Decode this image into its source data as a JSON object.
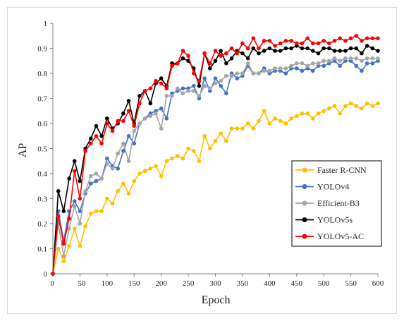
{
  "chart_data": {
    "type": "line",
    "title": "",
    "xlabel": "Epoch",
    "ylabel": "AP",
    "xlim": [
      0,
      600
    ],
    "ylim": [
      0,
      1
    ],
    "xticks": [
      0,
      50,
      100,
      150,
      200,
      250,
      300,
      350,
      400,
      450,
      500,
      550,
      600
    ],
    "xtick_labels": [
      "0",
      "50",
      "100",
      "150",
      "200",
      "250",
      "300",
      "350",
      "400",
      "450",
      "500",
      "550",
      "600"
    ],
    "yticks": [
      0,
      0.1,
      0.2,
      0.3,
      0.4,
      0.5,
      0.6,
      0.7,
      0.8,
      0.9,
      1
    ],
    "ytick_labels": [
      "0",
      "0.1",
      "0.2",
      "0.3",
      "0.4",
      "0.5",
      "0.6",
      "0.7",
      "0.8",
      "0.9",
      "1"
    ],
    "grid": false,
    "legend_position": "bottom-right",
    "x": [
      0,
      10,
      20,
      30,
      40,
      50,
      60,
      70,
      80,
      90,
      100,
      110,
      120,
      130,
      140,
      150,
      160,
      170,
      180,
      190,
      200,
      210,
      220,
      230,
      240,
      250,
      260,
      270,
      280,
      290,
      300,
      310,
      320,
      330,
      340,
      350,
      360,
      370,
      380,
      390,
      400,
      410,
      420,
      430,
      440,
      450,
      460,
      470,
      480,
      490,
      500,
      510,
      520,
      530,
      540,
      550,
      560,
      570,
      580,
      590,
      600
    ],
    "series": [
      {
        "name": "Faster R-CNN",
        "color": "#ffc000",
        "values": [
          0,
          0.1,
          0.05,
          0.11,
          0.18,
          0.11,
          0.19,
          0.24,
          0.25,
          0.25,
          0.3,
          0.28,
          0.33,
          0.36,
          0.32,
          0.37,
          0.4,
          0.41,
          0.42,
          0.43,
          0.39,
          0.45,
          0.46,
          0.47,
          0.46,
          0.5,
          0.49,
          0.45,
          0.55,
          0.5,
          0.53,
          0.56,
          0.53,
          0.58,
          0.58,
          0.58,
          0.6,
          0.58,
          0.61,
          0.65,
          0.6,
          0.62,
          0.61,
          0.6,
          0.62,
          0.63,
          0.64,
          0.64,
          0.62,
          0.64,
          0.65,
          0.66,
          0.67,
          0.64,
          0.67,
          0.68,
          0.67,
          0.66,
          0.68,
          0.67,
          0.68
        ]
      },
      {
        "name": "YOLOv4",
        "color": "#4472c4",
        "values": [
          0,
          0.25,
          0.13,
          0.25,
          0.29,
          0.25,
          0.32,
          0.36,
          0.37,
          0.38,
          0.46,
          0.43,
          0.42,
          0.49,
          0.55,
          0.52,
          0.6,
          0.62,
          0.64,
          0.65,
          0.66,
          0.62,
          0.72,
          0.73,
          0.74,
          0.74,
          0.75,
          0.7,
          0.78,
          0.73,
          0.78,
          0.75,
          0.72,
          0.8,
          0.78,
          0.79,
          0.83,
          0.8,
          0.8,
          0.82,
          0.8,
          0.81,
          0.81,
          0.8,
          0.82,
          0.82,
          0.81,
          0.82,
          0.81,
          0.83,
          0.83,
          0.84,
          0.85,
          0.83,
          0.85,
          0.85,
          0.83,
          0.81,
          0.84,
          0.84,
          0.85
        ]
      },
      {
        "name": "Efficient-B3",
        "color": "#a5a5a5",
        "values": [
          0,
          0.2,
          0.07,
          0.18,
          0.27,
          0.2,
          0.33,
          0.39,
          0.4,
          0.38,
          0.44,
          0.42,
          0.48,
          0.52,
          0.45,
          0.57,
          0.6,
          0.62,
          0.63,
          0.64,
          0.58,
          0.71,
          0.71,
          0.74,
          0.72,
          0.73,
          0.73,
          0.71,
          0.75,
          0.74,
          0.76,
          0.77,
          0.79,
          0.79,
          0.8,
          0.8,
          0.84,
          0.8,
          0.8,
          0.81,
          0.81,
          0.82,
          0.82,
          0.82,
          0.83,
          0.84,
          0.84,
          0.83,
          0.84,
          0.84,
          0.85,
          0.85,
          0.86,
          0.85,
          0.86,
          0.86,
          0.86,
          0.85,
          0.86,
          0.86,
          0.86
        ]
      },
      {
        "name": "YOLOv5s",
        "color": "#000000",
        "values": [
          0,
          0.33,
          0.25,
          0.38,
          0.45,
          0.37,
          0.5,
          0.54,
          0.59,
          0.55,
          0.62,
          0.58,
          0.6,
          0.64,
          0.69,
          0.6,
          0.71,
          0.73,
          0.68,
          0.76,
          0.78,
          0.75,
          0.84,
          0.84,
          0.86,
          0.85,
          0.82,
          0.75,
          0.88,
          0.82,
          0.85,
          0.89,
          0.84,
          0.86,
          0.89,
          0.88,
          0.86,
          0.9,
          0.88,
          0.89,
          0.9,
          0.89,
          0.89,
          0.9,
          0.9,
          0.91,
          0.9,
          0.9,
          0.89,
          0.88,
          0.9,
          0.9,
          0.89,
          0.89,
          0.89,
          0.9,
          0.9,
          0.88,
          0.91,
          0.9,
          0.89
        ]
      },
      {
        "name": "YOLOv5-AC",
        "color": "#ff0000",
        "values": [
          0,
          0.23,
          0.12,
          0.22,
          0.41,
          0.3,
          0.49,
          0.52,
          0.55,
          0.52,
          0.6,
          0.57,
          0.61,
          0.61,
          0.65,
          0.59,
          0.68,
          0.73,
          0.74,
          0.77,
          0.76,
          0.74,
          0.83,
          0.84,
          0.89,
          0.87,
          0.8,
          0.77,
          0.88,
          0.84,
          0.89,
          0.87,
          0.88,
          0.9,
          0.88,
          0.92,
          0.9,
          0.94,
          0.9,
          0.93,
          0.93,
          0.91,
          0.92,
          0.93,
          0.93,
          0.92,
          0.92,
          0.94,
          0.92,
          0.92,
          0.93,
          0.92,
          0.93,
          0.94,
          0.93,
          0.94,
          0.95,
          0.93,
          0.94,
          0.94,
          0.94
        ]
      }
    ]
  }
}
